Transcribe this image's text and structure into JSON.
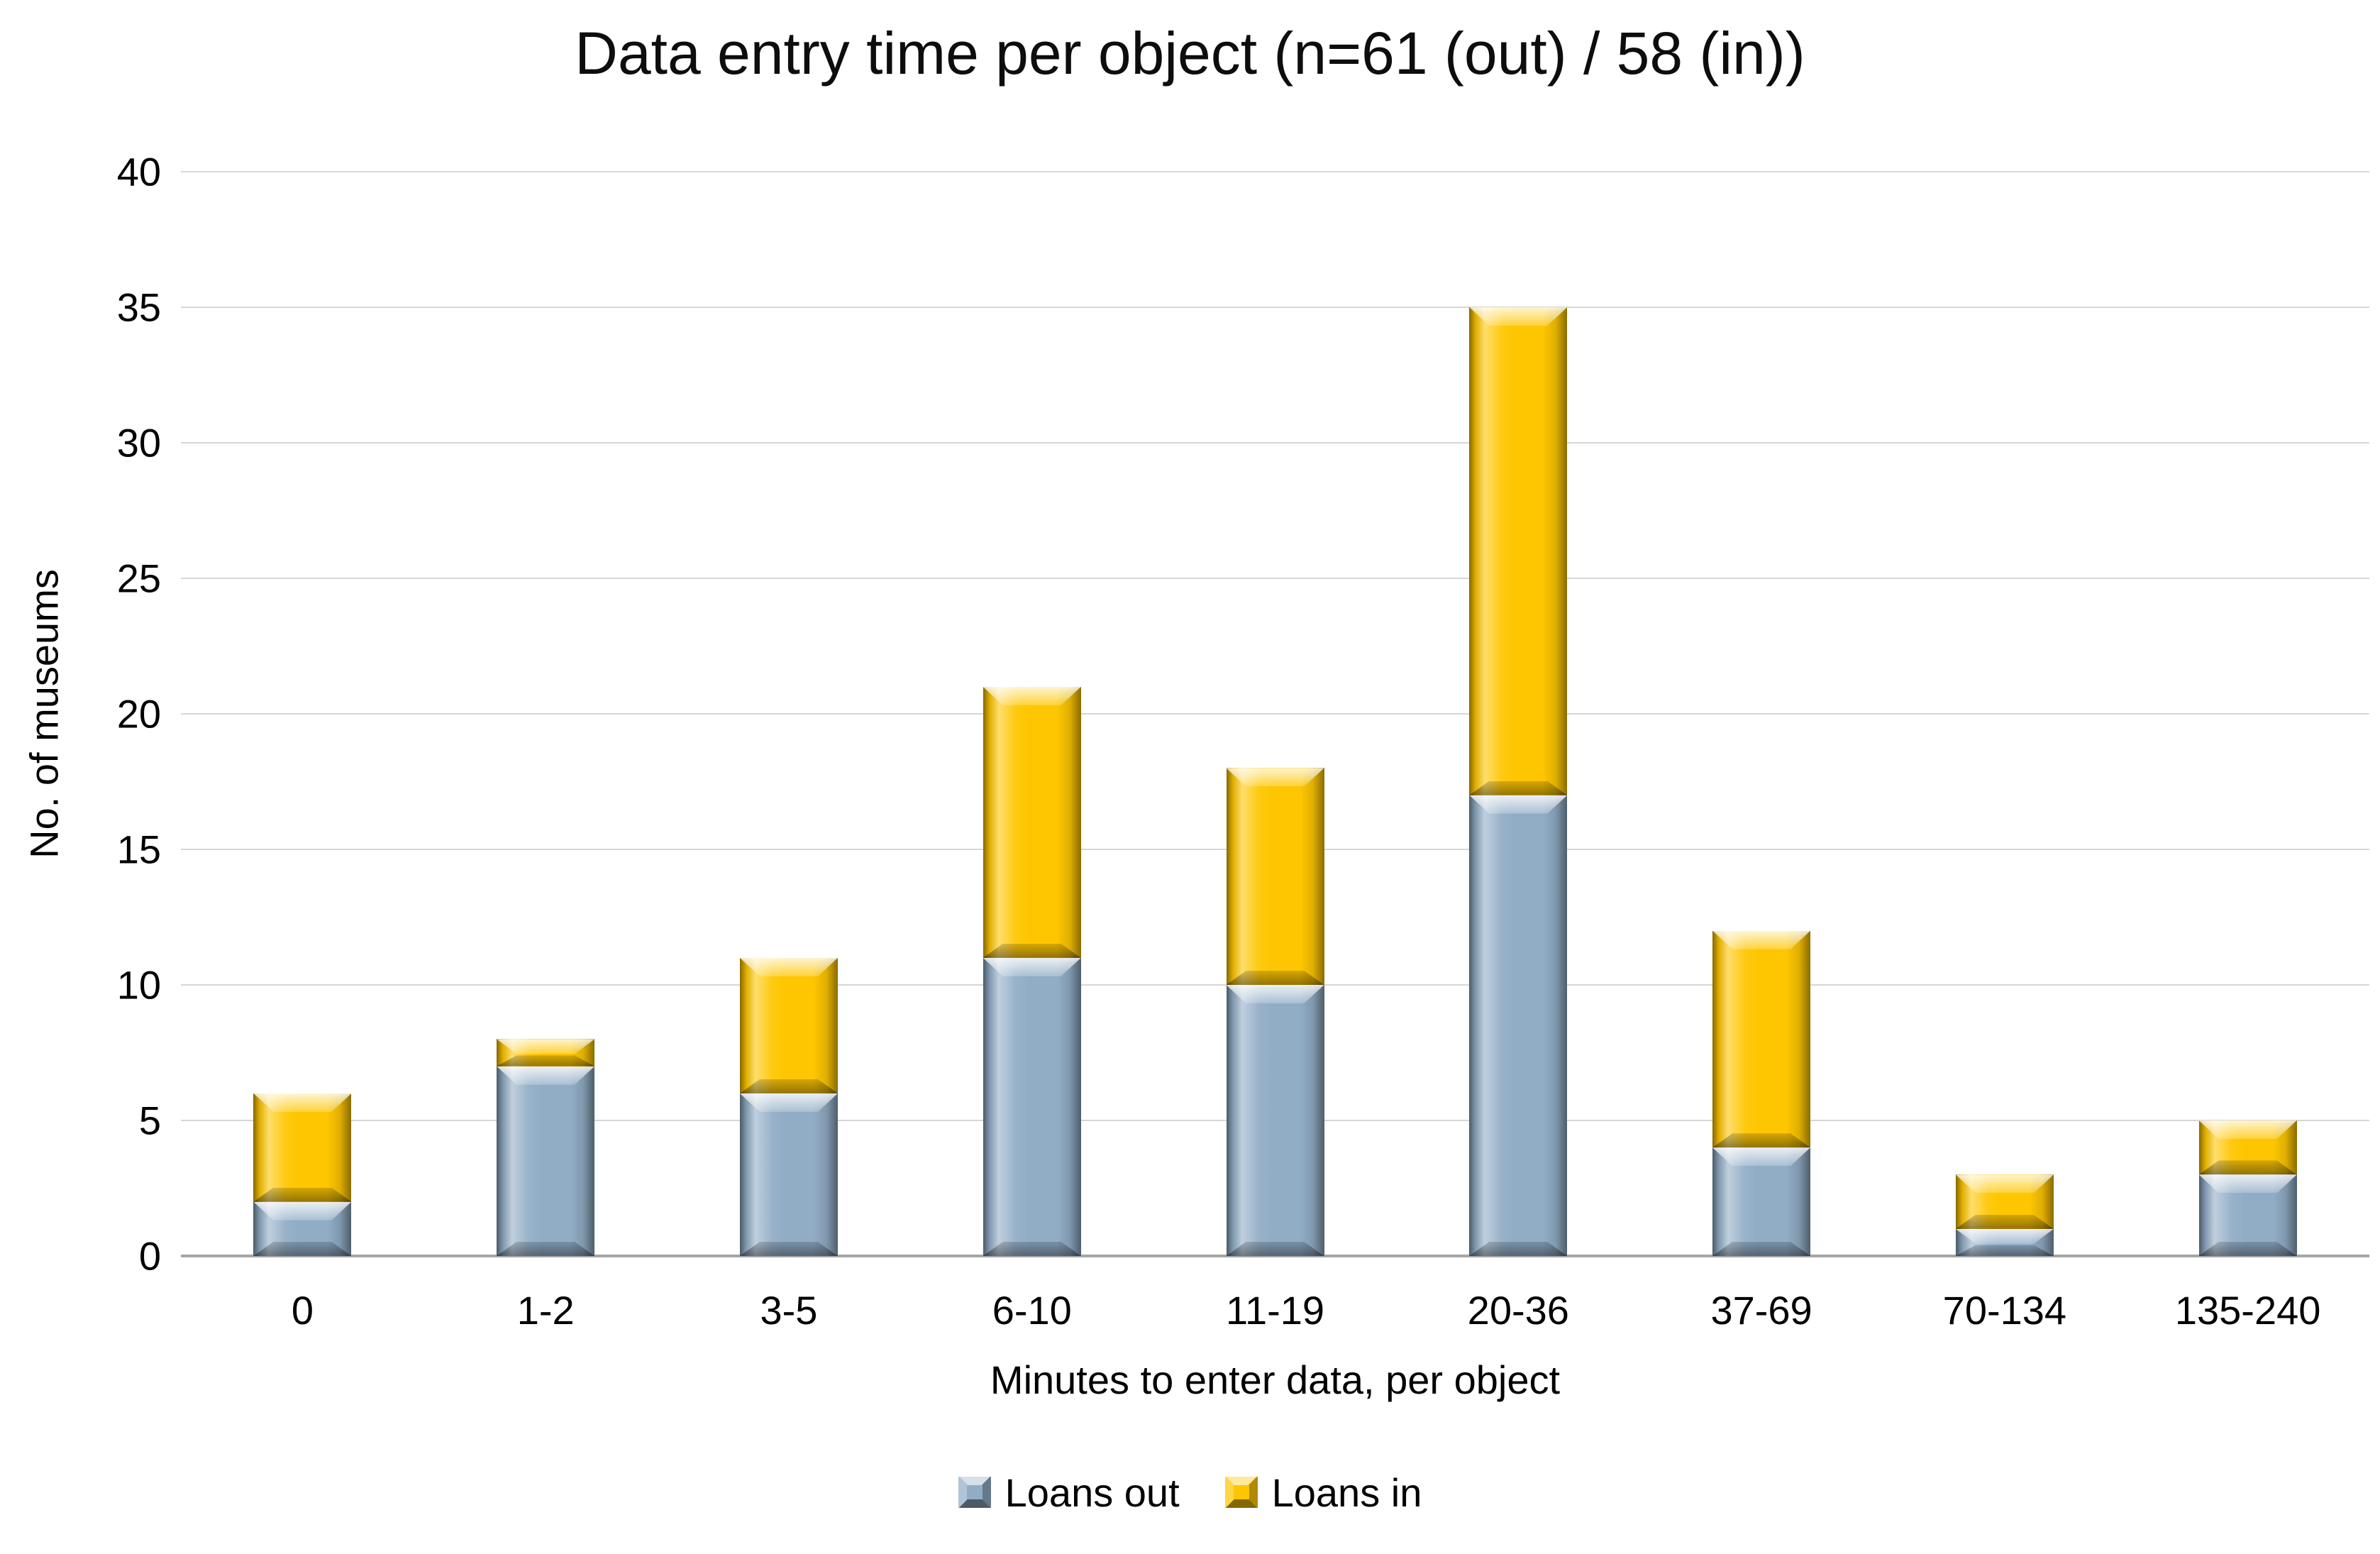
{
  "chart_data": {
    "type": "bar",
    "stacked": true,
    "title": "Data entry time per object (n=61 (out) / 58 (in))",
    "xlabel": "Minutes to enter data, per object",
    "ylabel": "No. of museums",
    "categories": [
      "0",
      "1-2",
      "3-5",
      "6-10",
      "11-19",
      "20-36",
      "37-69",
      "70-134",
      "135-240"
    ],
    "series": [
      {
        "name": "Loans out",
        "color": "#91ADC6",
        "values": [
          2,
          7,
          6,
          11,
          10,
          17,
          4,
          1,
          3
        ]
      },
      {
        "name": "Loans in",
        "color": "#FEC601",
        "values": [
          4,
          1,
          5,
          10,
          8,
          18,
          8,
          2,
          2
        ]
      }
    ],
    "ylim": [
      0,
      40
    ],
    "ytick_step": 5,
    "yticks": [
      0,
      5,
      10,
      15,
      20,
      25,
      30,
      35,
      40
    ],
    "grid": "horizontal",
    "legend_position": "bottom",
    "colors": {
      "gridline": "#D6D6D6",
      "axis_line": "#A6A6A6",
      "text": "#000000",
      "background": "#FFFFFF"
    }
  }
}
